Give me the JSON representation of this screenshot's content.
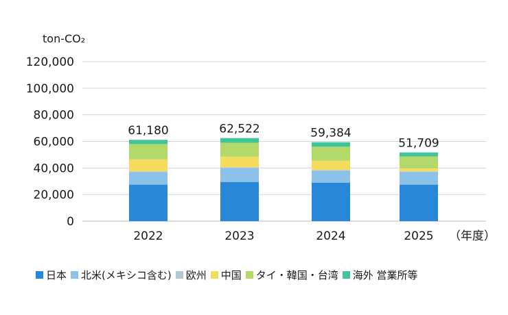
{
  "chart_data": {
    "type": "bar",
    "stacked": true,
    "ylabel": "ton-CO₂",
    "xlabel": "（年度）",
    "ylim": [
      0,
      120000
    ],
    "yticks": [
      "0",
      "20,000",
      "40,000",
      "60,000",
      "80,000",
      "100,000",
      "120,000"
    ],
    "ytick_values": [
      0,
      20000,
      40000,
      60000,
      80000,
      100000,
      120000
    ],
    "categories": [
      "2022",
      "2023",
      "2024",
      "2025"
    ],
    "totals": [
      61180,
      62522,
      59384,
      51709
    ],
    "total_labels": [
      "61,180",
      "62,522",
      "59,384",
      "51,709"
    ],
    "series": [
      {
        "name": "日本",
        "color": "#2887d6",
        "values": [
          27500,
          29500,
          29000,
          27500
        ]
      },
      {
        "name": "北米(メキシコ含む)",
        "color": "#8cc1ea",
        "values": [
          9500,
          10500,
          9000,
          9500
        ]
      },
      {
        "name": "欧州",
        "color": "#b1c9d3",
        "values": [
          500,
          500,
          500,
          500
        ]
      },
      {
        "name": "中国",
        "color": "#f5dc5e",
        "values": [
          9000,
          8000,
          7000,
          2200
        ]
      },
      {
        "name": "タイ・韓国・台湾",
        "color": "#b2d96a",
        "values": [
          11500,
          10500,
          10500,
          9000
        ]
      },
      {
        "name": "海外 営業所等",
        "color": "#3fc49c",
        "values": [
          3180,
          3522,
          3384,
          3009
        ]
      }
    ],
    "grid": true,
    "legend_position": "bottom"
  }
}
